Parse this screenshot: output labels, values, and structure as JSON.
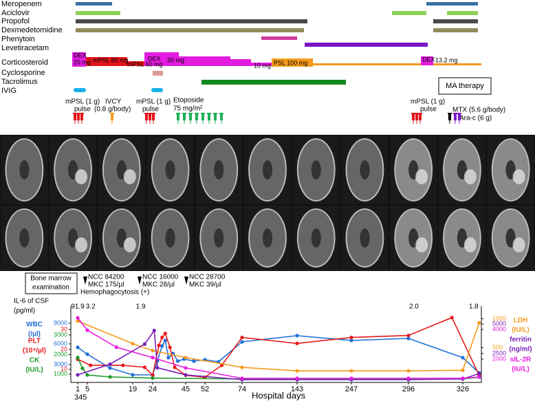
{
  "timeline": {
    "drugs": [
      "Meropenem",
      "Aciclovir",
      "Propofol",
      "Dexmedetomidine",
      "Phenytoin",
      "Levetiracetam",
      "Corticosteroid",
      "Cyclosporine",
      "Tacrolimus",
      "IVIG"
    ],
    "corticosteroid_labels": [
      "DEX",
      "20 mg",
      "mPSL 80 mg",
      "mPSL 60 mg",
      "DEX",
      "20 mg",
      "10 mg",
      "PSL 100 mg",
      "DEX",
      "13.2 mg"
    ],
    "ma_therapy": "MA therapy",
    "annotations": [
      "mPSL (1 g)",
      "pulse",
      "IVCY",
      "(0.8 g/body)",
      "mPSL (1 g)",
      "pulse",
      "Etoposide",
      "75 mg/m²",
      "mPSL (1 g)",
      "pulse",
      "MTX (5.6 g/body)",
      "Ara-c (6 g)"
    ]
  },
  "bone_marrow": {
    "title": [
      "Bone marrow",
      "examination"
    ],
    "results": [
      [
        "NCC 84200",
        "MKC  175/µl",
        "Hemophagocytosis (+)"
      ],
      [
        "NCC 16000",
        "MKC  28/µl"
      ],
      [
        "NCC 28700",
        "MKC  39/µl"
      ]
    ]
  },
  "lab_chart": {
    "x_label": "Hospital days",
    "xticks": [
      1,
      5,
      19,
      24,
      45,
      52,
      74,
      143,
      247,
      296,
      326
    ],
    "x_extra_label": "345",
    "il6": {
      "title": "IL-6 of CSF",
      "unit": "(pg/ml)",
      "x": [
        1,
        6,
        21,
        299,
        332
      ],
      "values": [
        91.9,
        3.2,
        1.9,
        2,
        1.8
      ],
      "value_labels": [
        "91.9",
        "3.2",
        "1.9",
        "2.0",
        "1.8"
      ]
    },
    "series": [
      {
        "name": "WBC",
        "unit": "(/µl)",
        "color": "#1f6fd6",
        "side": "left",
        "ylim": [
          400,
          10500
        ],
        "yticks": [
          3000,
          6000,
          9000
        ],
        "x": [
          1,
          5,
          12,
          19,
          24,
          27,
          30,
          32,
          34,
          37,
          40,
          44,
          48,
          52,
          60,
          74,
          143,
          247,
          296,
          326,
          335
        ],
        "values": [
          5500,
          4500,
          2500,
          1500,
          1500,
          3500,
          5700,
          6500,
          4000,
          4600,
          3500,
          3800,
          3500,
          3700,
          3400,
          6300,
          7200,
          6500,
          6800,
          4000,
          1800
        ]
      },
      {
        "name": "PLT",
        "unit": "(10⁴/µl)",
        "color": "#e8191b",
        "side": "left",
        "ylim": [
          3.4,
          38.3
        ],
        "yticks": [
          10,
          20,
          30
        ],
        "x": [
          1,
          6,
          16,
          22,
          24,
          28,
          30,
          32,
          35,
          38,
          45,
          52,
          62,
          74,
          143,
          247,
          296,
          320,
          335
        ],
        "values": [
          15,
          12,
          12,
          11,
          7,
          22,
          26,
          28,
          21,
          11,
          7,
          6,
          12,
          26,
          23,
          26,
          27,
          36,
          7
        ]
      },
      {
        "name": "CK",
        "unit": "(IU/L)",
        "color": "#1a9a2a",
        "side": "left",
        "ylim": [
          580,
          4120
        ],
        "yticks": [
          1000,
          2000,
          3000
        ],
        "x": [
          1,
          3,
          5,
          12,
          24,
          74,
          143,
          247,
          296,
          326,
          335
        ],
        "values": [
          1850,
          1300,
          960,
          860,
          800,
          760,
          760,
          760,
          760,
          760,
          850
        ]
      },
      {
        "name": "LDH",
        "unit": "(IU/L)",
        "color": "#f59a1b",
        "side": "right",
        "ylim": [
          -100,
          1100
        ],
        "yticks": [
          500,
          1000
        ],
        "x": [
          1,
          19,
          24,
          45,
          74,
          143,
          247,
          296,
          326,
          335
        ],
        "values": [
          960,
          570,
          450,
          330,
          160,
          100,
          100,
          100,
          110,
          930
        ]
      },
      {
        "name": "ferritin",
        "unit": "(ng/ml)",
        "color": "#7a1fb8",
        "side": "right",
        "ylim": [
          60,
          5930
        ],
        "yticks": [
          2500,
          5000
        ],
        "x": [
          1,
          12,
          22,
          25,
          27,
          45,
          74,
          143,
          247,
          296,
          326,
          335
        ],
        "values": [
          700,
          1600,
          3300,
          4450,
          1300,
          700,
          300,
          290,
          290,
          290,
          350,
          810
        ]
      },
      {
        "name": "sIL-2R",
        "unit": "(IU/L)",
        "color": "#e81ce0",
        "side": "right",
        "ylim": [
          420,
          5120
        ],
        "yticks": [
          2000,
          4000
        ],
        "x": [
          1,
          5,
          14,
          24,
          45,
          74,
          143,
          247,
          296,
          326,
          335
        ],
        "values": [
          4790,
          3950,
          2800,
          2100,
          1400,
          700,
          700,
          700,
          700,
          700,
          790
        ]
      }
    ]
  }
}
